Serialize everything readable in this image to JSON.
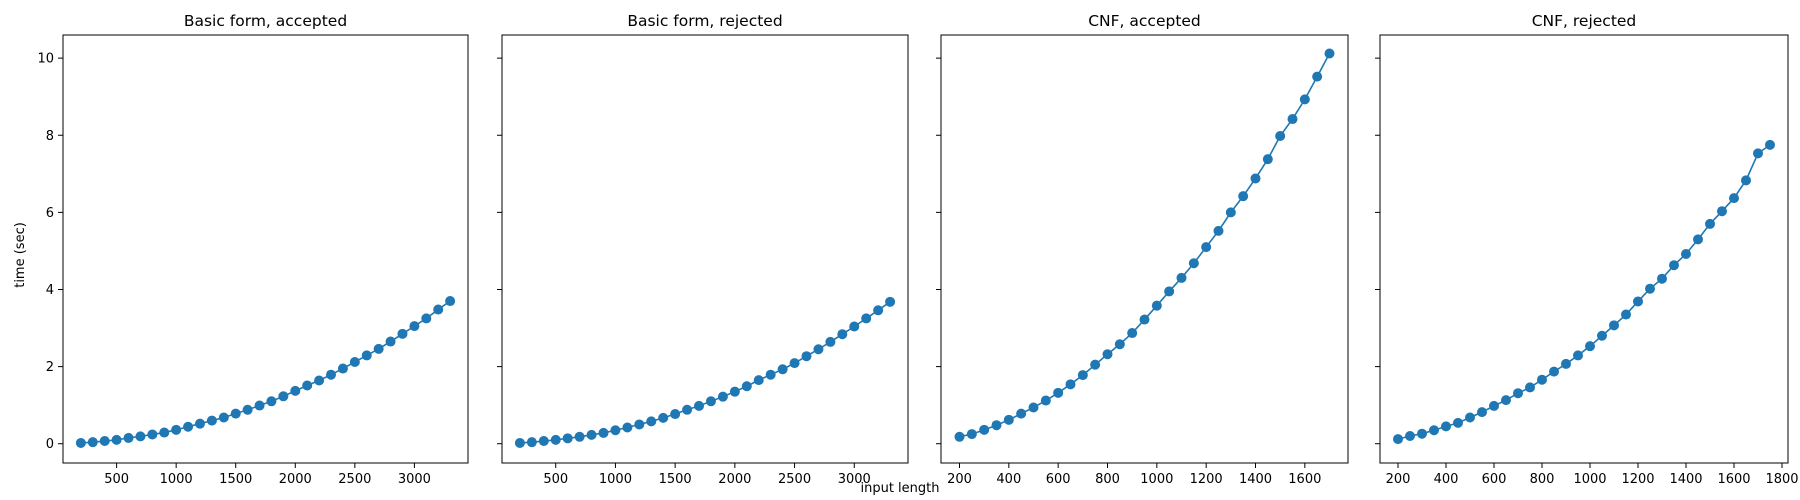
{
  "chart_data": [
    {
      "type": "line",
      "title": "Basic form, accepted",
      "xlabel": "",
      "ylabel": "time (sec)",
      "xlim": [
        50,
        3450
      ],
      "ylim": [
        -0.5,
        10.6
      ],
      "xticks": [
        500,
        1000,
        1500,
        2000,
        2500,
        3000
      ],
      "yticks": [
        0,
        2,
        4,
        6,
        8,
        10
      ],
      "grid": false,
      "series": [
        {
          "color": "#1f77b4",
          "x": [
            200,
            300,
            400,
            500,
            600,
            700,
            800,
            900,
            1000,
            1100,
            1200,
            1300,
            1400,
            1500,
            1600,
            1700,
            1800,
            1900,
            2000,
            2100,
            2200,
            2300,
            2400,
            2500,
            2600,
            2700,
            2800,
            2900,
            3000,
            3100,
            3200,
            3300
          ],
          "y": [
            0.02,
            0.04,
            0.07,
            0.1,
            0.15,
            0.19,
            0.24,
            0.29,
            0.36,
            0.44,
            0.52,
            0.6,
            0.68,
            0.78,
            0.88,
            0.99,
            1.1,
            1.23,
            1.37,
            1.51,
            1.64,
            1.79,
            1.95,
            2.12,
            2.29,
            2.46,
            2.65,
            2.85,
            3.05,
            3.25,
            3.48,
            3.7
          ]
        }
      ]
    },
    {
      "type": "line",
      "title": "Basic form, rejected",
      "xlabel": "",
      "ylabel": "",
      "xlim": [
        50,
        3450
      ],
      "ylim": [
        -0.5,
        10.6
      ],
      "xticks": [
        500,
        1000,
        1500,
        2000,
        2500,
        3000
      ],
      "yticks": [
        0,
        2,
        4,
        6,
        8,
        10
      ],
      "grid": false,
      "series": [
        {
          "color": "#1f77b4",
          "x": [
            200,
            300,
            400,
            500,
            600,
            700,
            800,
            900,
            1000,
            1100,
            1200,
            1300,
            1400,
            1500,
            1600,
            1700,
            1800,
            1900,
            2000,
            2100,
            2200,
            2300,
            2400,
            2500,
            2600,
            2700,
            2800,
            2900,
            3000,
            3100,
            3200,
            3300
          ],
          "y": [
            0.02,
            0.04,
            0.07,
            0.1,
            0.14,
            0.18,
            0.23,
            0.28,
            0.35,
            0.42,
            0.5,
            0.58,
            0.67,
            0.77,
            0.88,
            0.98,
            1.1,
            1.22,
            1.35,
            1.49,
            1.65,
            1.79,
            1.93,
            2.09,
            2.27,
            2.45,
            2.64,
            2.84,
            3.04,
            3.25,
            3.46,
            3.68
          ]
        }
      ]
    },
    {
      "type": "line",
      "title": "CNF, accepted",
      "xlabel": "input length",
      "ylabel": "",
      "xlim": [
        125,
        1775
      ],
      "ylim": [
        -0.5,
        10.6
      ],
      "xticks": [
        200,
        400,
        600,
        800,
        1000,
        1200,
        1400,
        1600
      ],
      "yticks": [
        0,
        2,
        4,
        6,
        8,
        10
      ],
      "grid": false,
      "series": [
        {
          "color": "#1f77b4",
          "x": [
            200,
            250,
            300,
            350,
            400,
            450,
            500,
            550,
            600,
            650,
            700,
            750,
            800,
            850,
            900,
            950,
            1000,
            1050,
            1100,
            1150,
            1200,
            1250,
            1300,
            1350,
            1400,
            1450,
            1500,
            1550,
            1600,
            1650,
            1700
          ],
          "y": [
            0.18,
            0.25,
            0.36,
            0.48,
            0.62,
            0.78,
            0.94,
            1.12,
            1.32,
            1.54,
            1.78,
            2.05,
            2.32,
            2.58,
            2.87,
            3.22,
            3.58,
            3.95,
            4.3,
            4.68,
            5.1,
            5.52,
            6.0,
            6.42,
            6.88,
            7.38,
            7.98,
            8.42,
            8.93,
            9.52,
            10.12
          ]
        }
      ]
    },
    {
      "type": "line",
      "title": "CNF, rejected",
      "xlabel": "",
      "ylabel": "",
      "xlim": [
        125,
        1825
      ],
      "ylim": [
        -0.5,
        10.6
      ],
      "xticks": [
        200,
        400,
        600,
        800,
        1000,
        1200,
        1400,
        1600,
        1800
      ],
      "yticks": [
        0,
        2,
        4,
        6,
        8,
        10
      ],
      "grid": false,
      "series": [
        {
          "color": "#1f77b4",
          "x": [
            200,
            250,
            300,
            350,
            400,
            450,
            500,
            550,
            600,
            650,
            700,
            750,
            800,
            850,
            900,
            950,
            1000,
            1050,
            1100,
            1150,
            1200,
            1250,
            1300,
            1350,
            1400,
            1450,
            1500,
            1550,
            1600,
            1650,
            1700,
            1750
          ],
          "y": [
            0.12,
            0.2,
            0.26,
            0.35,
            0.45,
            0.54,
            0.68,
            0.82,
            0.98,
            1.13,
            1.31,
            1.46,
            1.66,
            1.87,
            2.07,
            2.29,
            2.53,
            2.8,
            3.07,
            3.35,
            3.69,
            4.02,
            4.28,
            4.63,
            4.92,
            5.3,
            5.7,
            6.03,
            6.37,
            6.83,
            7.53,
            7.75
          ]
        }
      ]
    }
  ]
}
